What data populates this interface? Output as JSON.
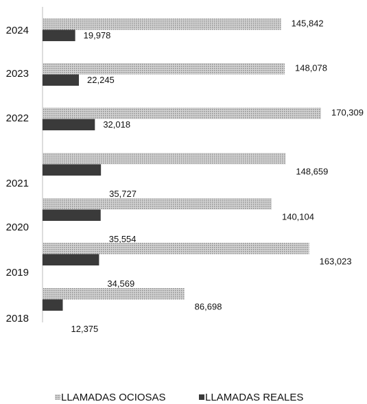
{
  "chart_data": {
    "type": "bar",
    "orientation": "horizontal",
    "categories": [
      "2024",
      "2023",
      "2022",
      "2021",
      "2020",
      "2019",
      "2018"
    ],
    "series": [
      {
        "name": "LLAMADAS OCIOSAS",
        "color": "#b8b8b8",
        "values": [
          145842,
          148078,
          170309,
          148659,
          140104,
          163023,
          86698
        ],
        "value_labels": [
          "145,842",
          "148,078",
          "170,309",
          "148,659",
          "140,104",
          "163,023",
          "86,698"
        ]
      },
      {
        "name": "LLAMADAS REALES",
        "color": "#3a3a3a",
        "values": [
          19978,
          22245,
          32018,
          35727,
          35554,
          34569,
          12375
        ],
        "value_labels": [
          "19,978",
          "22,245",
          "32,018",
          "35,727",
          "35,554",
          "34,569",
          "12,375"
        ]
      }
    ],
    "legend": "bottom"
  }
}
